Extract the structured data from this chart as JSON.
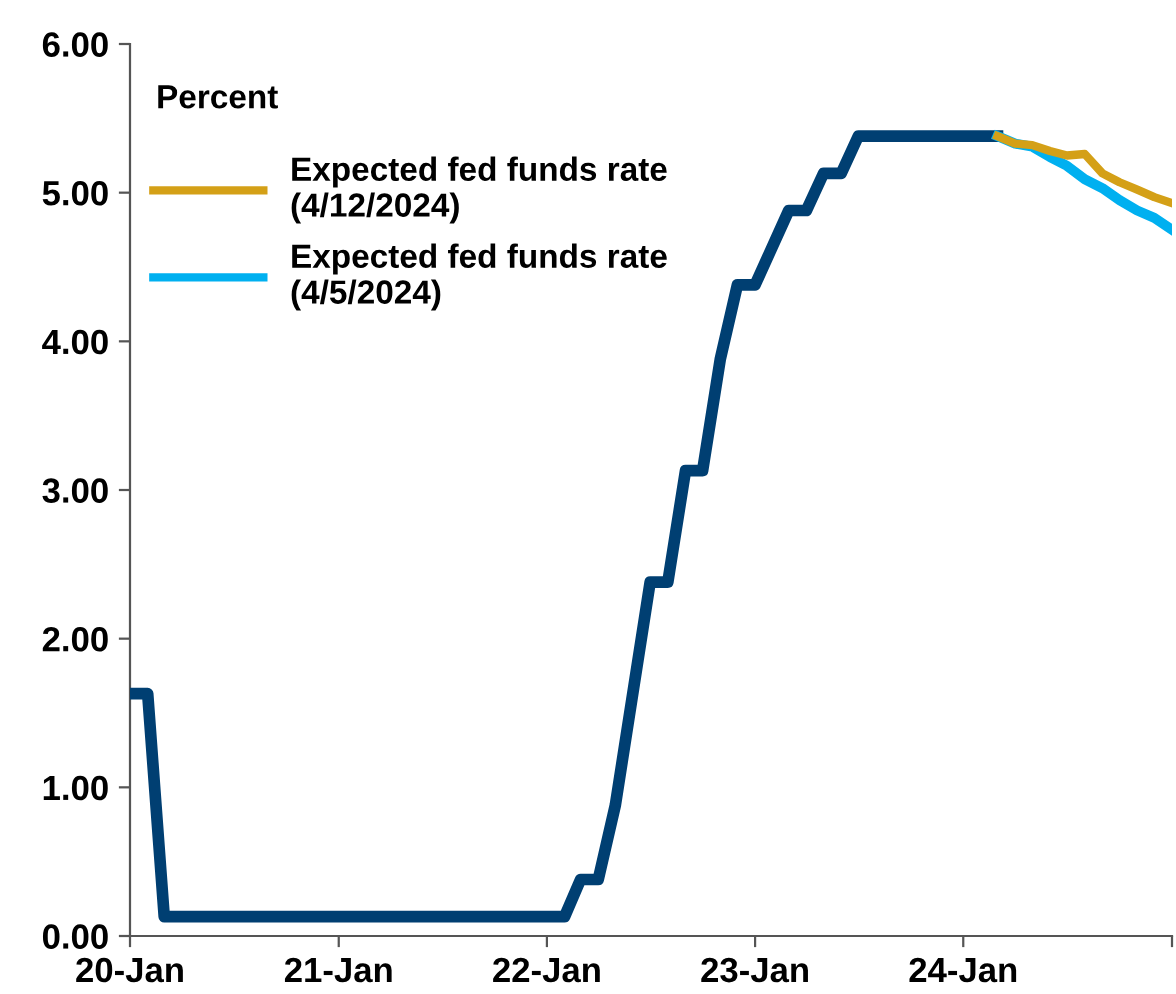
{
  "chart_data": {
    "type": "line",
    "ylabel": "Percent",
    "xlim": [
      "2020-01",
      "2025-01"
    ],
    "xticks": [
      {
        "value": "2020-01",
        "label": "20-Jan"
      },
      {
        "value": "2021-01",
        "label": "21-Jan"
      },
      {
        "value": "2022-01",
        "label": "22-Jan"
      },
      {
        "value": "2023-01",
        "label": "23-Jan"
      },
      {
        "value": "2024-01",
        "label": "24-Jan"
      },
      {
        "value": "2025-01",
        "label": null
      }
    ],
    "ylim": [
      0,
      6
    ],
    "yticks": [
      {
        "value": 0,
        "label": "0.00"
      },
      {
        "value": 1,
        "label": "1.00"
      },
      {
        "value": 2,
        "label": "2.00"
      },
      {
        "value": 3,
        "label": "3.00"
      },
      {
        "value": 4,
        "label": "4.00"
      },
      {
        "value": 5,
        "label": "5.00"
      },
      {
        "value": 6,
        "label": "6.00"
      }
    ],
    "grid": false,
    "legend": "top left",
    "marker": "none",
    "line_style": "solid",
    "series": [
      {
        "name": "Expected fed funds rate (4/12/2024)",
        "color": "#d4a017",
        "x": [
          "2024-03",
          "2024-04",
          "2024-05",
          "2024-06",
          "2024-07",
          "2024-08",
          "2024-09",
          "2024-10",
          "2024-11",
          "2024-12",
          "2025-01"
        ],
        "values": [
          5.38,
          5.33,
          5.32,
          5.28,
          5.25,
          5.26,
          5.13,
          5.07,
          5.02,
          4.97,
          4.93
        ]
      },
      {
        "name": "Expected fed funds rate (4/5/2024)",
        "color": "#00b0f0",
        "x": [
          "2024-03",
          "2024-04",
          "2024-05",
          "2024-06",
          "2024-07",
          "2024-08",
          "2024-09",
          "2024-10",
          "2024-11",
          "2024-12",
          "2025-01"
        ],
        "values": [
          5.38,
          5.33,
          5.31,
          5.24,
          5.18,
          5.09,
          5.03,
          4.95,
          4.88,
          4.83,
          4.75
        ]
      },
      {
        "color": "#003f72",
        "x": [
          "2020-01",
          "2020-02",
          "2020-03",
          "2022-02",
          "2022-03",
          "2022-04",
          "2022-05",
          "2022-07",
          "2022-08",
          "2022-09",
          "2022-10",
          "2022-11",
          "2022-12",
          "2023-01",
          "2023-03",
          "2023-04",
          "2023-05",
          "2023-06",
          "2023-07",
          "2024-03"
        ],
        "values": [
          1.63,
          1.63,
          0.13,
          0.13,
          0.38,
          0.38,
          0.88,
          2.38,
          2.38,
          3.13,
          3.13,
          3.88,
          4.38,
          4.38,
          4.88,
          4.88,
          5.13,
          5.13,
          5.38,
          5.38
        ]
      }
    ]
  }
}
